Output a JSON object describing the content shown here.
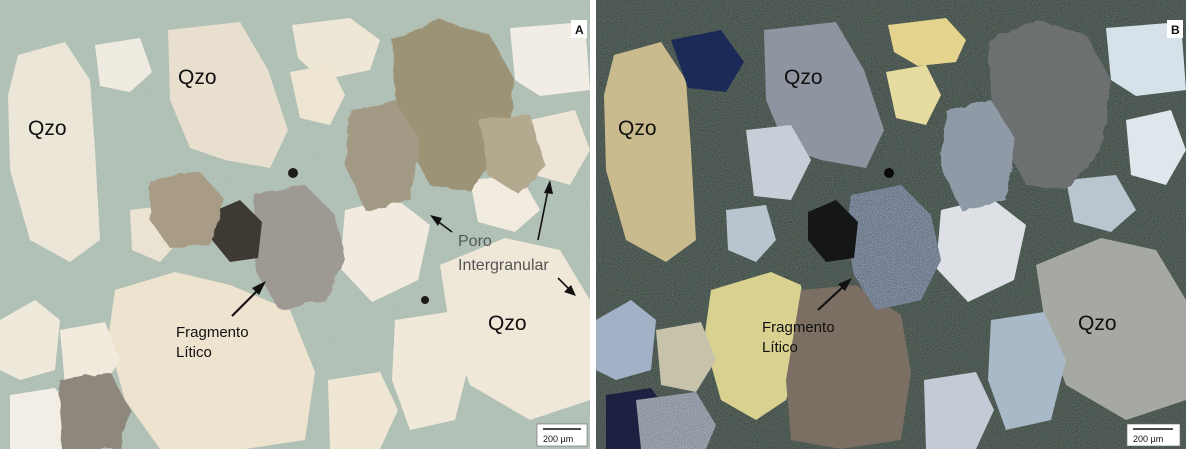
{
  "panel_a": {
    "corner_letter": "A",
    "qzo_1": "Qzo",
    "qzo_2": "Qzo",
    "qzo_3": "Qzo",
    "lithic_label_line1": "Fragmento",
    "lithic_label_line2": "Lítico",
    "pore_label_line1": "Poro",
    "pore_label_line2": "Intergranular",
    "scale_bar": "200 µm"
  },
  "panel_b": {
    "corner_letter": "B",
    "qzo_1": "Qzo",
    "qzo_2": "Qzo",
    "qzo_3": "Qzo",
    "lithic_label_line1": "Fragmento",
    "lithic_label_line2": "Lítico",
    "scale_bar": "200 µm"
  },
  "colors": {
    "matrix_plane_light": "#a9b9ad",
    "matrix_cross_polarized": "#2d3a34",
    "label_text": "#111111"
  }
}
